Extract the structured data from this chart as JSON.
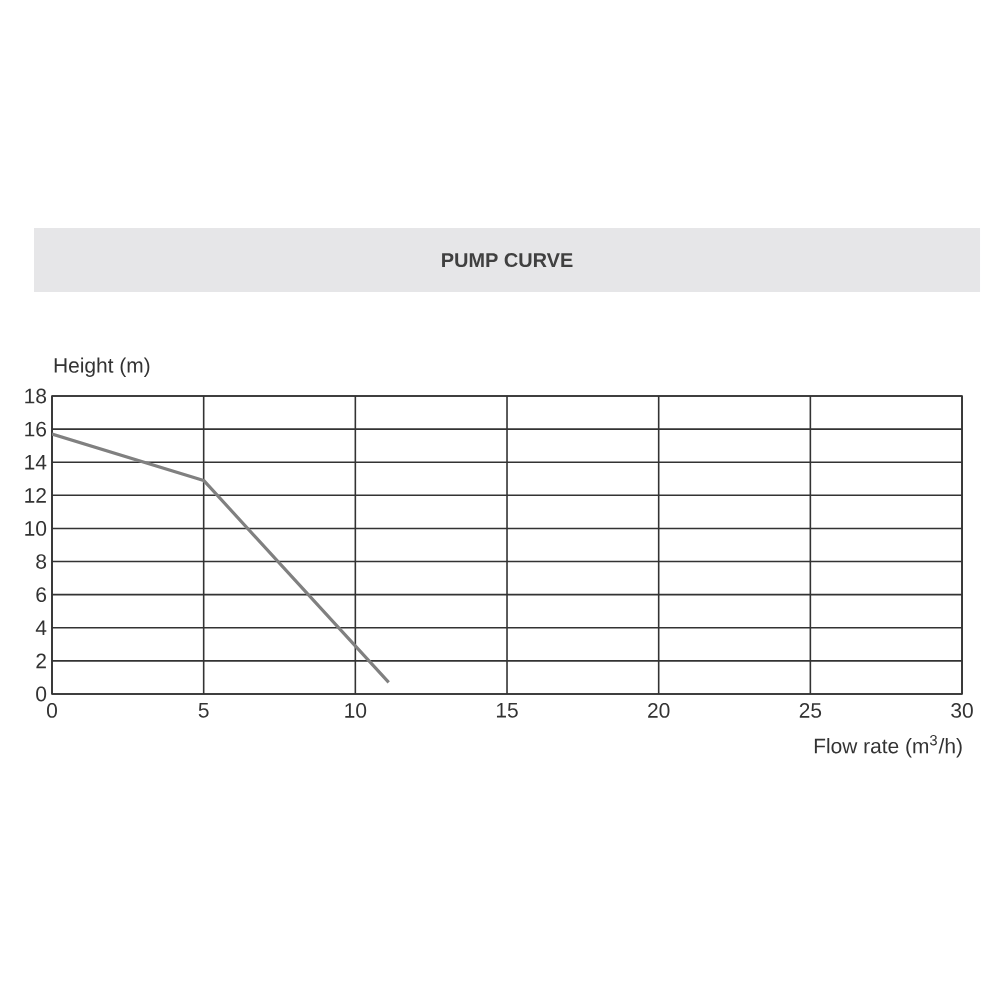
{
  "chart_data": {
    "type": "line",
    "title": "PUMP CURVE",
    "xlabel": "Flow rate (m$^{3}$/h)",
    "ylabel": "Height (m)",
    "x": [
      0,
      5,
      11.1
    ],
    "series": [
      {
        "color": "#808080",
        "values": [
          15.7,
          12.9,
          0.7
        ]
      }
    ],
    "xlim": [
      0,
      30
    ],
    "xticks": [
      0,
      5,
      10,
      15,
      20,
      25,
      30
    ],
    "ylim": [
      0,
      18
    ],
    "yticks": [
      0,
      2,
      4,
      6,
      8,
      10,
      12,
      14,
      16,
      18
    ],
    "grid": true,
    "marker": "none",
    "line_style": "solid"
  }
}
